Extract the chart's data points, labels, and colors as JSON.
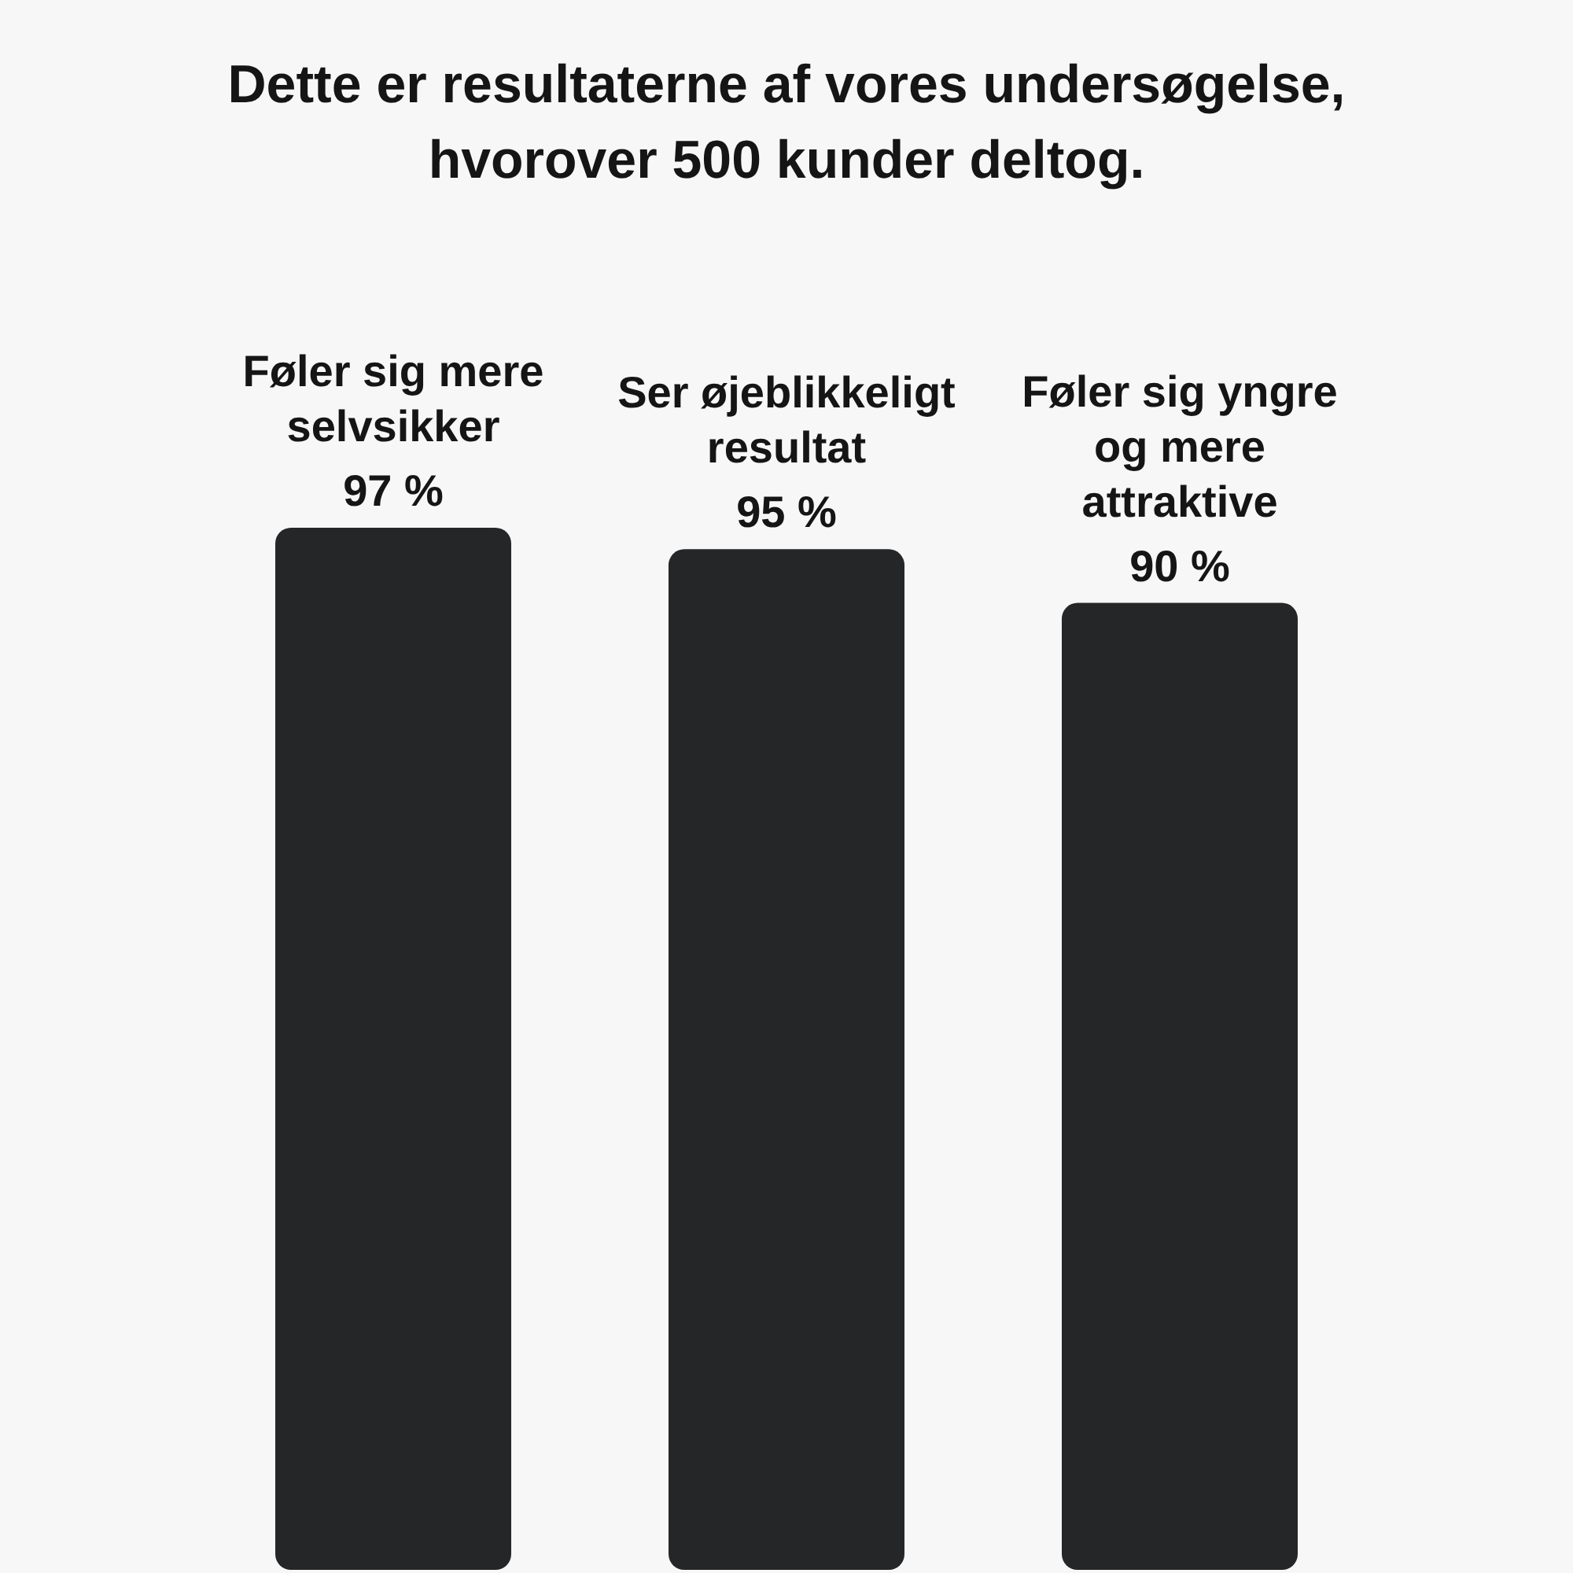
{
  "chart_data": {
    "type": "bar",
    "title": "Dette er resultaterne af vores undersøgelse, hvorover 500 kunder deltog.",
    "categories": [
      "Føler sig mere selvsikker",
      "Ser øjeblikkeligt resultat",
      "Føler sig yngre og mere attraktive"
    ],
    "values": [
      97,
      95,
      90
    ],
    "value_labels": [
      "97 %",
      "95 %",
      "90 %"
    ],
    "color": "#252627",
    "tick_labels": false
  }
}
